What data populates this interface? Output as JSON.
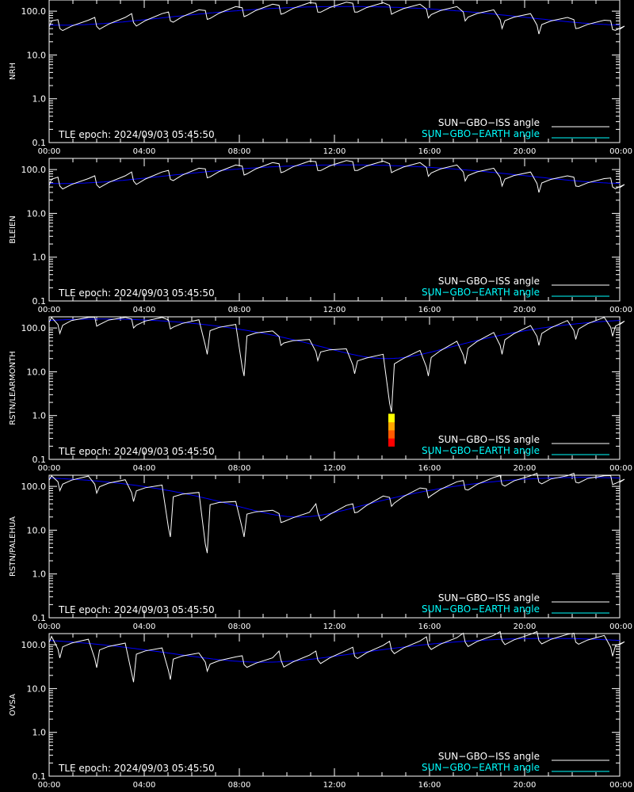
{
  "legend": {
    "iss": "SUN−GBO−ISS angle",
    "earth": "SUN−GBO−EARTH angle"
  },
  "epoch_label": "TLE epoch: 2024/09/03 05:45:50",
  "colors": {
    "background": "#000000",
    "axes": "#ffffff",
    "iss": "#ffffff",
    "earth_line": "#0000ff",
    "earth_legend": "#00ffff",
    "occultation_ramp": [
      "#ff0000",
      "#ff5a00",
      "#ffa500",
      "#ffff00"
    ]
  },
  "chart_data": [
    {
      "type": "line",
      "ylabel": "NRH",
      "yscale": "log",
      "ylim": [
        0.1,
        180
      ],
      "xlim": [
        0,
        24
      ],
      "x_tick_labels": [
        "00:00",
        "04:00",
        "08:00",
        "12:00",
        "16:00",
        "20:00",
        "00:00"
      ],
      "y_tick_labels": [
        "0.1",
        "1.0",
        "10.0",
        "100.0"
      ],
      "earth_angle": {
        "amp": 40,
        "center": 88,
        "peak_hour": 12.5
      },
      "iss_dips": [
        {
          "t": 0.45,
          "v": 40
        },
        {
          "t": 2.0,
          "v": 45
        },
        {
          "t": 3.55,
          "v": 55
        },
        {
          "t": 5.1,
          "v": 60
        },
        {
          "t": 6.65,
          "v": 65
        },
        {
          "t": 8.2,
          "v": 75
        },
        {
          "t": 9.75,
          "v": 85
        },
        {
          "t": 11.3,
          "v": 95
        },
        {
          "t": 12.85,
          "v": 95
        },
        {
          "t": 14.4,
          "v": 85
        },
        {
          "t": 15.95,
          "v": 70
        },
        {
          "t": 17.5,
          "v": 60
        },
        {
          "t": 19.05,
          "v": 40
        },
        {
          "t": 20.6,
          "v": 30
        },
        {
          "t": 22.15,
          "v": 40
        },
        {
          "t": 23.7,
          "v": 38
        }
      ],
      "occultation": null
    },
    {
      "type": "line",
      "ylabel": "BLEIEN",
      "yscale": "log",
      "ylim": [
        0.1,
        180
      ],
      "xlim": [
        0,
        24
      ],
      "x_tick_labels": [
        "00:00",
        "04:00",
        "08:00",
        "12:00",
        "16:00",
        "20:00",
        "00:00"
      ],
      "y_tick_labels": [
        "0.1",
        "1.0",
        "10.0",
        "100.0"
      ],
      "earth_angle": {
        "amp": 40,
        "center": 88,
        "peak_hour": 12.5
      },
      "iss_dips": [
        {
          "t": 0.45,
          "v": 42
        },
        {
          "t": 2.0,
          "v": 45
        },
        {
          "t": 3.55,
          "v": 55
        },
        {
          "t": 5.1,
          "v": 60
        },
        {
          "t": 6.65,
          "v": 65
        },
        {
          "t": 8.2,
          "v": 75
        },
        {
          "t": 9.75,
          "v": 85
        },
        {
          "t": 11.3,
          "v": 95
        },
        {
          "t": 12.85,
          "v": 95
        },
        {
          "t": 14.4,
          "v": 85
        },
        {
          "t": 15.95,
          "v": 70
        },
        {
          "t": 17.5,
          "v": 55
        },
        {
          "t": 19.05,
          "v": 42
        },
        {
          "t": 20.6,
          "v": 30
        },
        {
          "t": 22.15,
          "v": 42
        },
        {
          "t": 23.7,
          "v": 40
        }
      ],
      "occultation": null
    },
    {
      "type": "line",
      "ylabel": "RSTN/LEARMONTH",
      "yscale": "log",
      "ylim": [
        0.1,
        180
      ],
      "xlim": [
        0,
        24
      ],
      "x_tick_labels": [
        "00:00",
        "04:00",
        "08:00",
        "12:00",
        "16:00",
        "20:00",
        "00:00"
      ],
      "y_tick_labels": [
        "0.1",
        "1.0",
        "10.0",
        "100.0"
      ],
      "earth_angle": {
        "amp": 70,
        "center": 90,
        "peak_hour": 2.2
      },
      "iss_dips": [
        {
          "t": 0.45,
          "v": 75
        },
        {
          "t": 2.0,
          "v": 110
        },
        {
          "t": 3.55,
          "v": 100
        },
        {
          "t": 5.1,
          "v": 95
        },
        {
          "t": 6.65,
          "v": 25
        },
        {
          "t": 8.2,
          "v": 8
        },
        {
          "t": 9.75,
          "v": 40
        },
        {
          "t": 11.3,
          "v": 18
        },
        {
          "t": 12.85,
          "v": 9
        },
        {
          "t": 14.4,
          "v": 1.2
        },
        {
          "t": 15.95,
          "v": 8
        },
        {
          "t": 17.5,
          "v": 15
        },
        {
          "t": 19.05,
          "v": 25
        },
        {
          "t": 20.6,
          "v": 40
        },
        {
          "t": 22.15,
          "v": 55
        },
        {
          "t": 23.7,
          "v": 65
        }
      ],
      "occultation": {
        "t": 14.4,
        "top": 1.1,
        "bottom": 0.2
      }
    },
    {
      "type": "line",
      "ylabel": "RSTN/PALEHUA",
      "yscale": "log",
      "ylim": [
        0.1,
        180
      ],
      "xlim": [
        0,
        24
      ],
      "x_tick_labels": [
        "00:00",
        "04:00",
        "08:00",
        "12:00",
        "16:00",
        "20:00",
        "00:00"
      ],
      "y_tick_labels": [
        "0.1",
        "1.0",
        "10.0",
        "100.0"
      ],
      "earth_angle": {
        "amp": 70,
        "center": 90,
        "peak_hour": 22.5
      },
      "iss_dips": [
        {
          "t": 0.45,
          "v": 80
        },
        {
          "t": 2.0,
          "v": 70
        },
        {
          "t": 3.55,
          "v": 45
        },
        {
          "t": 5.1,
          "v": 7
        },
        {
          "t": 6.65,
          "v": 3
        },
        {
          "t": 8.2,
          "v": 7
        },
        {
          "t": 9.75,
          "v": 15
        },
        {
          "t": 11.3,
          "v": 25
        },
        {
          "t": 12.85,
          "v": 25
        },
        {
          "t": 14.4,
          "v": 35
        },
        {
          "t": 15.95,
          "v": 55
        },
        {
          "t": 17.5,
          "v": 85
        },
        {
          "t": 19.05,
          "v": 110
        },
        {
          "t": 20.6,
          "v": 125
        },
        {
          "t": 22.15,
          "v": 125
        },
        {
          "t": 23.7,
          "v": 110
        }
      ],
      "occultation": null
    },
    {
      "type": "line",
      "ylabel": "OVSA",
      "yscale": "log",
      "ylim": [
        0.1,
        180
      ],
      "xlim": [
        0,
        24
      ],
      "x_tick_labels": [
        "00:00",
        "04:00",
        "08:00",
        "12:00",
        "16:00",
        "20:00",
        "00:00"
      ],
      "y_tick_labels": [
        "0.1",
        "1.0",
        "10.0",
        "100.0"
      ],
      "earth_angle": {
        "amp": 50,
        "center": 90,
        "peak_hour": 21.0
      },
      "iss_dips": [
        {
          "t": 0.45,
          "v": 50
        },
        {
          "t": 2.0,
          "v": 30
        },
        {
          "t": 3.55,
          "v": 14
        },
        {
          "t": 5.1,
          "v": 16
        },
        {
          "t": 6.65,
          "v": 25
        },
        {
          "t": 8.2,
          "v": 35
        },
        {
          "t": 9.75,
          "v": 45
        },
        {
          "t": 11.3,
          "v": 45
        },
        {
          "t": 12.85,
          "v": 55
        },
        {
          "t": 14.4,
          "v": 75
        },
        {
          "t": 15.95,
          "v": 95
        },
        {
          "t": 17.5,
          "v": 115
        },
        {
          "t": 19.05,
          "v": 125
        },
        {
          "t": 20.6,
          "v": 125
        },
        {
          "t": 22.15,
          "v": 115
        },
        {
          "t": 23.7,
          "v": 55
        }
      ],
      "occultation": null
    }
  ]
}
